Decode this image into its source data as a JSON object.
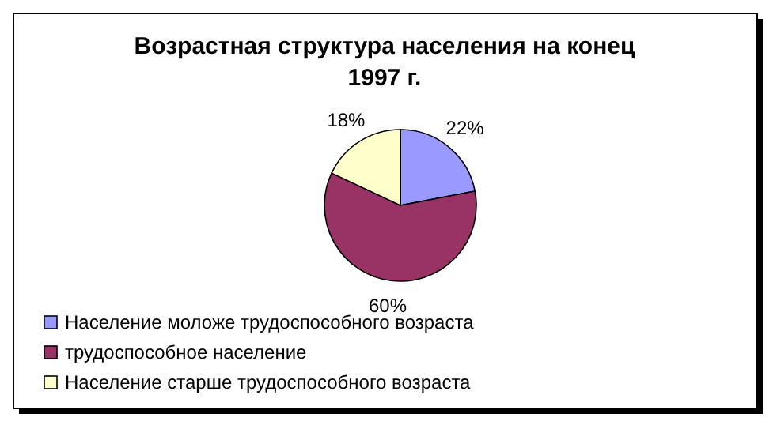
{
  "chart_data": {
    "type": "pie",
    "title": "Возрастная структура населения на конец 1997 г.",
    "categories": [
      "Население моложе трудоспособного возраста",
      "трудоспособное население",
      "Население старше трудоспособного возраста"
    ],
    "values": [
      22,
      60,
      18
    ],
    "colors": [
      "#9999ff",
      "#993366",
      "#ffffcc"
    ],
    "value_labels": [
      "22%",
      "60%",
      "18%"
    ],
    "legend": "bottom left"
  }
}
